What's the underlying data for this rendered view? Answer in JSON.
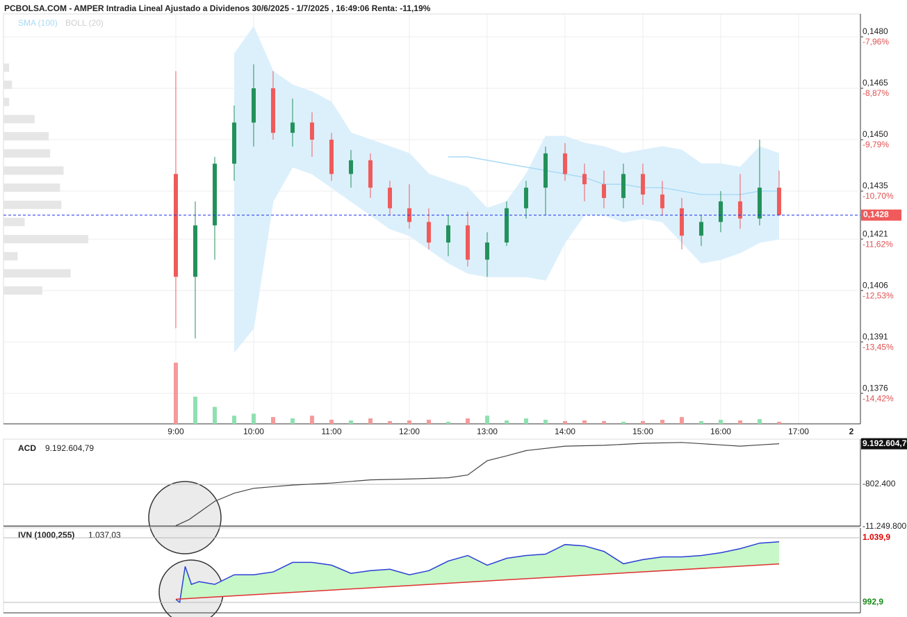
{
  "chart_data": [
    {
      "type": "candlestick",
      "title": "PCBOLSA.COM - AMPER Intradia Lineal Ajustado a Dividenos 30/6/2025 - 1/7/2025 , 16:49:06 Renta: -11,19%",
      "xlim": [
        6.786,
        17.795
      ],
      "xticks": [
        {
          "value": 9,
          "label": "9:00"
        },
        {
          "value": 10,
          "label": "10:00"
        },
        {
          "value": 11,
          "label": "11:00"
        },
        {
          "value": 12,
          "label": "12:00"
        },
        {
          "value": 13,
          "label": "13:00"
        },
        {
          "value": 14,
          "label": "14:00"
        },
        {
          "value": 15,
          "label": "15:00"
        },
        {
          "value": 16,
          "label": "16:00"
        },
        {
          "value": 17,
          "label": "17:00"
        }
      ],
      "x_axis_end_label": "2",
      "ylim": [
        0.13671,
        0.14867
      ],
      "yticks": [
        {
          "value": 0.148,
          "label": "0,1480"
        },
        {
          "value": 0.1465,
          "label": "0,1465"
        },
        {
          "value": 0.145,
          "label": "0,1450"
        },
        {
          "value": 0.1435,
          "label": "0,1435"
        },
        {
          "value": 0.1421,
          "label": "0,1421"
        },
        {
          "value": 0.1406,
          "label": "0,1406"
        },
        {
          "value": 0.1391,
          "label": "0,1391"
        },
        {
          "value": 0.1376,
          "label": "0,1376"
        }
      ],
      "ytick_pct_labels": [
        "-7,96%",
        "-8,87%",
        "-9,79%",
        "-10,70%",
        "-11,62%",
        "-12,53%",
        "-13,45%",
        "-14,42%"
      ],
      "grid": true,
      "up_color": "#22915a",
      "down_color": "#f05a5a",
      "up_volume_color": "#8fe0b0",
      "down_volume_color": "#f59a9a",
      "last_price": {
        "value": 0.1428,
        "label": "0,1428"
      },
      "x": [
        9,
        9.25,
        9.5,
        9.75,
        10,
        10.25,
        10.5,
        10.75,
        11,
        11.25,
        11.5,
        11.75,
        12,
        12.25,
        12.5,
        12.75,
        13,
        13.25,
        13.5,
        13.75,
        14,
        14.25,
        14.5,
        14.75,
        15,
        15.25,
        15.5,
        15.75,
        16,
        16.25,
        16.5,
        16.75
      ],
      "open": [
        0.144,
        0.141,
        0.1425,
        0.1443,
        0.1455,
        0.1465,
        0.1452,
        0.1455,
        0.145,
        0.144,
        0.1444,
        0.1436,
        0.143,
        0.1426,
        0.142,
        0.1425,
        0.1415,
        0.142,
        0.143,
        0.1436,
        0.1446,
        0.144,
        0.1437,
        0.1433,
        0.144,
        0.1434,
        0.143,
        0.1422,
        0.1426,
        0.1432,
        0.1427,
        0.1436
      ],
      "high": [
        0.147,
        0.1432,
        0.1445,
        0.146,
        0.1472,
        0.147,
        0.1462,
        0.1458,
        0.1452,
        0.1447,
        0.1446,
        0.1438,
        0.1437,
        0.143,
        0.1428,
        0.1429,
        0.1423,
        0.1432,
        0.1438,
        0.1448,
        0.1449,
        0.1443,
        0.1441,
        0.1443,
        0.1443,
        0.1438,
        0.1433,
        0.1428,
        0.1435,
        0.144,
        0.145,
        0.1441
      ],
      "low": [
        0.1395,
        0.1392,
        0.1415,
        0.1438,
        0.1448,
        0.145,
        0.1448,
        0.1445,
        0.1438,
        0.1436,
        0.1433,
        0.1428,
        0.1424,
        0.1418,
        0.1416,
        0.1413,
        0.141,
        0.1419,
        0.1427,
        0.1428,
        0.1438,
        0.1432,
        0.143,
        0.143,
        0.1431,
        0.1428,
        0.1418,
        0.1419,
        0.1423,
        0.1424,
        0.1425,
        0.1428
      ],
      "close": [
        0.141,
        0.1425,
        0.1443,
        0.1455,
        0.1465,
        0.1452,
        0.1455,
        0.145,
        0.144,
        0.1444,
        0.1436,
        0.143,
        0.1426,
        0.142,
        0.1425,
        0.1415,
        0.142,
        0.143,
        0.1436,
        0.1446,
        0.144,
        0.1437,
        0.1433,
        0.144,
        0.1434,
        0.143,
        0.1422,
        0.1426,
        0.1432,
        0.1427,
        0.1436,
        0.1428
      ],
      "volume": [
        90,
        40,
        25,
        12,
        15,
        10,
        8,
        12,
        6,
        5,
        8,
        4,
        5,
        6,
        3,
        8,
        12,
        5,
        8,
        6,
        4,
        5,
        4,
        3,
        4,
        6,
        10,
        4,
        6,
        5,
        7,
        3
      ],
      "sma": {
        "label": "SMA (100)",
        "color": "#a9daf5",
        "values": [
          null,
          null,
          null,
          null,
          null,
          null,
          null,
          null,
          null,
          null,
          null,
          null,
          null,
          null,
          0.1445,
          0.1445,
          0.1444,
          0.1443,
          0.1442,
          0.1441,
          0.144,
          0.1439,
          0.1437,
          0.1437,
          0.1436,
          0.1436,
          0.1435,
          0.1434,
          0.1434,
          0.1434,
          0.1435,
          0.1435
        ]
      },
      "boll": {
        "label": "BOLL (20)",
        "color": "#cfcfcf",
        "fill": "#dcf0fc",
        "upper": [
          null,
          null,
          null,
          0.1475,
          0.1483,
          0.147,
          0.1466,
          0.1464,
          0.1461,
          0.1452,
          0.145,
          0.1448,
          0.1446,
          0.144,
          0.1438,
          0.1436,
          0.143,
          0.1432,
          0.144,
          0.1451,
          0.1451,
          0.1449,
          0.1448,
          0.1446,
          0.1447,
          0.1448,
          0.1447,
          0.1443,
          0.1443,
          0.1442,
          0.1448,
          0.1446
        ],
        "lower": [
          null,
          null,
          null,
          0.1388,
          0.1395,
          0.1432,
          0.1442,
          0.144,
          0.1436,
          0.1432,
          0.1428,
          0.1424,
          0.1422,
          0.1418,
          0.1414,
          0.1411,
          0.141,
          0.141,
          0.141,
          0.1409,
          0.142,
          0.1428,
          0.1428,
          0.1426,
          0.1427,
          0.1426,
          0.142,
          0.1414,
          0.1415,
          0.1417,
          0.142,
          0.1421
        ]
      },
      "volume_profile": {
        "color": "#e6e6e6",
        "prices": [
          0.1471,
          0.1466,
          0.1461,
          0.1456,
          0.1451,
          0.1446,
          0.1441,
          0.1436,
          0.1431,
          0.1426,
          0.1421,
          0.1416,
          0.1411,
          0.1406
        ],
        "values": [
          8,
          12,
          8,
          44,
          64,
          66,
          85,
          80,
          82,
          30,
          120,
          20,
          95,
          55
        ]
      }
    },
    {
      "type": "line",
      "label": "ACD",
      "value_label": "9.192.604,79",
      "xlim": [
        6.786,
        17.795
      ],
      "ylim": [
        -11080000,
        10330000
      ],
      "yticks": [
        {
          "value": -802400,
          "label": "-802.400"
        },
        {
          "value": -11249800,
          "label": "-11.249.800"
        }
      ],
      "last_value": {
        "value": 9192604.79,
        "label": "9.192.604,79"
      },
      "color": "#444444",
      "x": [
        9,
        9.17,
        9.5,
        9.75,
        10,
        10.5,
        11,
        11.5,
        12,
        12.5,
        12.75,
        13,
        13.25,
        13.5,
        14,
        14.5,
        15,
        15.5,
        16,
        16.25,
        16.5,
        16.75
      ],
      "values": [
        -11000000,
        -9500000,
        -5000000,
        -3000000,
        -1800000,
        -1000000,
        -500000,
        300000,
        500000,
        800000,
        1500000,
        5000000,
        6200000,
        7500000,
        8600000,
        8800000,
        9300000,
        9500000,
        8900000,
        8600000,
        8900000,
        9192604.79
      ]
    },
    {
      "type": "line",
      "label": "IVN (1000,255)",
      "value_label": "1.037,03",
      "xlim": [
        6.786,
        17.795
      ],
      "ylim": [
        985.3,
        1046.97
      ],
      "yticks": [
        {
          "value": 1039.9,
          "label": "1.039,9"
        },
        {
          "value": 992.9,
          "label": "992,9"
        }
      ],
      "ytick_colors": [
        "#e00000",
        "#1a8a1a"
      ],
      "fill": "#c8f7c8",
      "series": [
        {
          "color": "#2b3fd6",
          "x": [
            9,
            9.05,
            9.12,
            9.2,
            9.3,
            9.5,
            9.75,
            10,
            10.25,
            10.5,
            10.75,
            11,
            11.25,
            11.5,
            11.75,
            12,
            12.25,
            12.5,
            12.75,
            13,
            13.25,
            13.5,
            13.75,
            14,
            14.25,
            14.5,
            14.75,
            15,
            15.25,
            15.5,
            15.75,
            16,
            16.25,
            16.5,
            16.75
          ],
          "values": [
            995,
            993,
            1019,
            1006,
            1008,
            1006,
            1013,
            1013,
            1015,
            1022,
            1022,
            1020,
            1014,
            1016,
            1017,
            1013,
            1016,
            1023,
            1027,
            1020,
            1025,
            1027,
            1028,
            1035,
            1034,
            1030,
            1021,
            1024,
            1026,
            1026,
            1027,
            1029,
            1032,
            1036,
            1037.03
          ]
        },
        {
          "color": "#e03030",
          "x": [
            9,
            16.75
          ],
          "values": [
            995.2,
            1020.9
          ]
        }
      ]
    }
  ]
}
